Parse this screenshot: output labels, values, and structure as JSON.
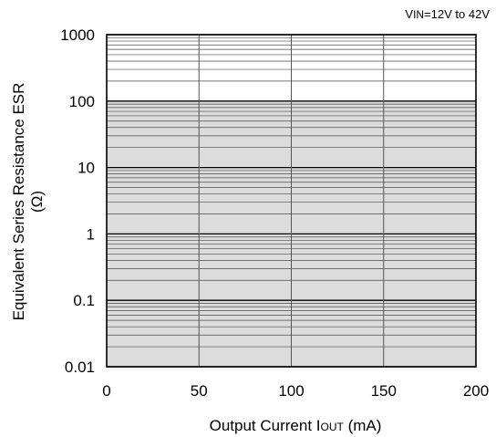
{
  "chart_data": {
    "type": "area",
    "condition": {
      "prefix": "V",
      "sub": "IN",
      "rest": "=12V to 42V"
    },
    "xlabel": {
      "main": "Output Current I",
      "sub": "OUT",
      "unit": " (mA)"
    },
    "ylabel": {
      "line1": "Equivalent Series Resistance ESR",
      "line2": "(Ω)"
    },
    "x_ticks": [
      "0",
      "50",
      "100",
      "150",
      "200"
    ],
    "x_tick_values": [
      0,
      50,
      100,
      150,
      200
    ],
    "y_ticks": [
      "0.01",
      "0.1",
      "1",
      "10",
      "100",
      "1000"
    ],
    "y_tick_values": [
      0.01,
      0.1,
      1,
      10,
      100,
      1000
    ],
    "xlim": [
      0,
      200
    ],
    "ylim": [
      0.01,
      1000
    ],
    "y_scale": "log",
    "grid": true,
    "stable_region": {
      "x": [
        0,
        200
      ],
      "esr_min": [
        0.01,
        0.01
      ],
      "esr_max": [
        100,
        100
      ],
      "fill_color": "#dcdcdc"
    }
  }
}
